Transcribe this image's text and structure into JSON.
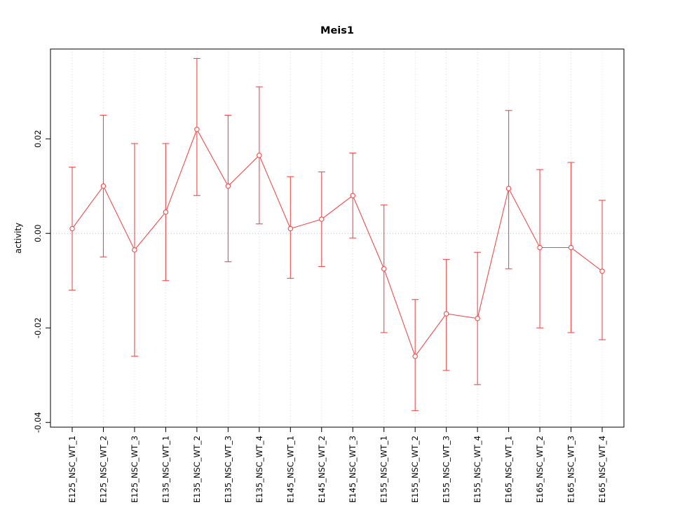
{
  "chart_data": {
    "type": "line",
    "title": "Meis1",
    "xlabel": "",
    "ylabel": "activity",
    "categories": [
      "E125_NSC_WT_1",
      "E125_NSC_WT_2",
      "E125_NSC_WT_3",
      "E135_NSC_WT_1",
      "E135_NSC_WT_2",
      "E135_NSC_WT_3",
      "E135_NSC_WT_4",
      "E145_NSC_WT_1",
      "E145_NSC_WT_2",
      "E145_NSC_WT_3",
      "E155_NSC_WT_1",
      "E155_NSC_WT_2",
      "E155_NSC_WT_3",
      "E155_NSC_WT_4",
      "E165_NSC_WT_1",
      "E165_NSC_WT_2",
      "E165_NSC_WT_3",
      "E165_NSC_WT_4"
    ],
    "series": [
      {
        "name": "activity",
        "values": [
          0.001,
          0.01,
          -0.0035,
          0.0045,
          0.022,
          0.01,
          0.0165,
          0.001,
          0.003,
          0.008,
          -0.0075,
          -0.026,
          -0.017,
          -0.018,
          0.0095,
          -0.003,
          -0.003,
          -0.008
        ],
        "error_upper": [
          0.014,
          0.025,
          0.019,
          0.019,
          0.037,
          0.025,
          0.031,
          0.012,
          0.013,
          0.017,
          0.006,
          -0.014,
          -0.0055,
          -0.004,
          0.026,
          0.0135,
          0.015,
          0.007
        ],
        "error_lower": [
          -0.012,
          -0.005,
          -0.026,
          -0.01,
          0.008,
          -0.006,
          0.002,
          -0.0095,
          -0.007,
          -0.001,
          -0.021,
          -0.0375,
          -0.029,
          -0.032,
          -0.0075,
          -0.02,
          -0.021,
          -0.0225
        ]
      }
    ],
    "yticks": [
      0.02,
      0.0,
      -0.02,
      -0.04
    ],
    "ytick_labels": [
      "0.02",
      "0.00",
      "-0.02",
      "-0.04"
    ],
    "ylim": [
      -0.041,
      0.039
    ],
    "grid": true,
    "zero_line": true,
    "error_bars": true,
    "marker": "open-circle",
    "legend": "none",
    "colors": {
      "series": "#f04b4b",
      "grid": "#d8d8d8",
      "zero_line": "#c0c0c0",
      "box": "#000000",
      "background": "#ffffff"
    }
  }
}
